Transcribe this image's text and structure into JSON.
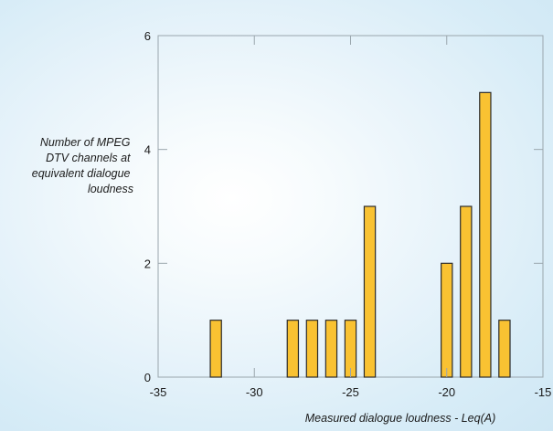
{
  "chart_data": {
    "type": "bar",
    "xlabel": "Measured dialogue loudness - Leq(A)",
    "ylabel_lines": [
      "Number of MPEG",
      "DTV channels at",
      "equivalent dialogue",
      "loudness"
    ],
    "xlim": [
      -35,
      -15
    ],
    "ylim": [
      0,
      6
    ],
    "x_ticks": [
      -35,
      -30,
      -25,
      -20,
      -15
    ],
    "y_ticks": [
      0,
      2,
      4,
      6
    ],
    "x": [
      -32,
      -28,
      -27,
      -26,
      -25,
      -24,
      -20,
      -19,
      -18,
      -17
    ],
    "values": [
      1,
      1,
      1,
      1,
      1,
      3,
      2,
      3,
      5,
      1
    ],
    "bar_color": "#f9c232",
    "bar_edge_color": "#2b2b2b",
    "grid": false,
    "frame_color": "#9aa6ad"
  }
}
